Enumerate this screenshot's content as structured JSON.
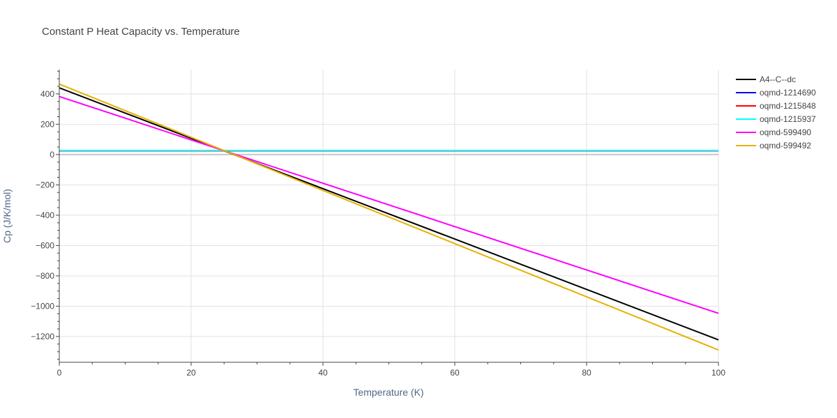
{
  "chart_data": {
    "type": "line",
    "title": "Constant P Heat Capacity vs. Temperature",
    "xlabel": "Temperature (K)",
    "ylabel": "Cp (J/K/mol)",
    "xlim": [
      0,
      100
    ],
    "ylim": [
      -1370,
      560
    ],
    "xticks": [
      0,
      20,
      40,
      60,
      80,
      100
    ],
    "yticks": [
      400,
      200,
      0,
      -200,
      -400,
      -600,
      -800,
      -1000,
      -1200
    ],
    "ytick_labels": [
      "400",
      "200",
      "0",
      "−200",
      "−400",
      "−600",
      "−800",
      "−1000",
      "−1200"
    ],
    "grid": true,
    "legend_position": "right",
    "series": [
      {
        "name": "A4--C--dc",
        "color": "#000000",
        "x": [
          0,
          100
        ],
        "y": [
          440,
          -1222
        ]
      },
      {
        "name": "oqmd-1214690",
        "color": "#0000ff",
        "x": [
          0,
          100
        ],
        "y": [
          25,
          25
        ]
      },
      {
        "name": "oqmd-1215848",
        "color": "#ff0000",
        "x": [
          0,
          100
        ],
        "y": [
          25,
          25
        ]
      },
      {
        "name": "oqmd-1215937",
        "color": "#00ffff",
        "x": [
          0,
          100
        ],
        "y": [
          27,
          27
        ]
      },
      {
        "name": "oqmd-599490",
        "color": "#ff00ff",
        "x": [
          0,
          100
        ],
        "y": [
          383,
          -1047
        ]
      },
      {
        "name": "oqmd-599492",
        "color": "#e6b100",
        "x": [
          0,
          100
        ],
        "y": [
          465,
          -1289
        ]
      }
    ]
  }
}
